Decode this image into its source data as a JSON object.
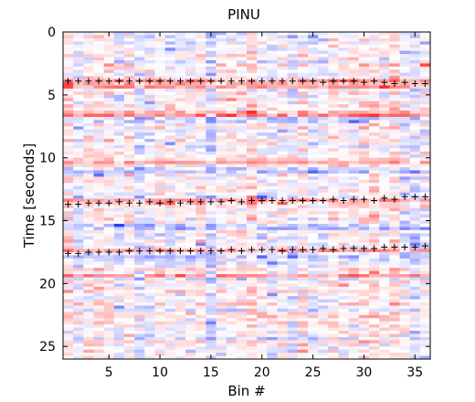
{
  "chart_data": {
    "type": "heatmap",
    "title": "PINU",
    "xlabel": "Bin #",
    "ylabel": "Time [seconds]",
    "xlim": [
      0.5,
      36.5
    ],
    "ylim": [
      0,
      26
    ],
    "y_reversed": true,
    "x_ticks": [
      5,
      10,
      15,
      20,
      25,
      30,
      35
    ],
    "y_ticks": [
      0,
      5,
      10,
      15,
      20,
      25
    ],
    "n_bins": 36,
    "n_time_rows": 104,
    "colormap": "blue-white-red (diverging)",
    "colormap_colors": {
      "low": "#2b3cff",
      "mid": "#ffffff",
      "high": "#ff2b2b"
    },
    "pick_marker": "+",
    "pick_color": "#000000",
    "pick_series": [
      {
        "x": [
          1,
          2,
          3,
          4,
          5,
          6,
          7,
          8,
          9,
          10,
          11,
          12,
          13,
          14,
          15,
          16,
          17,
          18,
          19,
          20,
          21,
          22,
          23,
          24,
          25,
          26,
          27,
          28,
          29,
          30,
          31,
          32,
          33,
          34,
          35,
          36
        ],
        "y": [
          3.9,
          3.9,
          3.9,
          3.9,
          3.9,
          3.9,
          3.9,
          3.9,
          3.9,
          3.9,
          3.9,
          3.9,
          3.9,
          3.9,
          3.9,
          3.9,
          3.9,
          3.9,
          3.9,
          3.9,
          3.9,
          3.9,
          3.9,
          3.9,
          3.9,
          4.0,
          3.9,
          3.9,
          3.9,
          4.0,
          3.9,
          4.0,
          4.1,
          4.0,
          4.1,
          4.1
        ]
      },
      {
        "x": [
          1,
          2,
          3,
          4,
          5,
          6,
          7,
          8,
          9,
          10,
          11,
          12,
          13,
          14,
          15,
          16,
          17,
          18,
          19,
          20,
          21,
          22,
          23,
          24,
          25,
          26,
          27,
          28,
          29,
          30,
          31,
          32,
          33,
          34,
          35,
          36
        ],
        "y": [
          13.7,
          13.7,
          13.6,
          13.6,
          13.6,
          13.5,
          13.6,
          13.6,
          13.5,
          13.6,
          13.5,
          13.6,
          13.5,
          13.5,
          13.5,
          13.5,
          13.4,
          13.5,
          13.4,
          13.4,
          13.4,
          13.4,
          13.4,
          13.4,
          13.4,
          13.4,
          13.3,
          13.4,
          13.3,
          13.3,
          13.4,
          13.2,
          13.3,
          13.1,
          13.1,
          13.1
        ]
      },
      {
        "x": [
          1,
          2,
          3,
          4,
          5,
          6,
          7,
          8,
          9,
          10,
          11,
          12,
          13,
          14,
          15,
          16,
          17,
          18,
          19,
          20,
          21,
          22,
          23,
          24,
          25,
          26,
          27,
          28,
          29,
          30,
          31,
          32,
          33,
          34,
          35,
          36
        ],
        "y": [
          17.6,
          17.6,
          17.5,
          17.5,
          17.5,
          17.5,
          17.4,
          17.4,
          17.4,
          17.4,
          17.4,
          17.4,
          17.4,
          17.4,
          17.4,
          17.4,
          17.3,
          17.4,
          17.3,
          17.3,
          17.3,
          17.4,
          17.3,
          17.3,
          17.3,
          17.2,
          17.3,
          17.2,
          17.2,
          17.2,
          17.2,
          17.1,
          17.1,
          17.1,
          17.1,
          17.0
        ]
      }
    ],
    "strong_row_bands": [
      {
        "t": 3.9,
        "sign": 1,
        "strength": 0.9
      },
      {
        "t": 4.25,
        "sign": 1,
        "strength": 0.7
      },
      {
        "t": 6.6,
        "sign": 1,
        "strength": 0.85
      },
      {
        "t": 7.0,
        "sign": -1,
        "strength": 0.5
      },
      {
        "t": 10.2,
        "sign": 1,
        "strength": 0.6
      },
      {
        "t": 11.0,
        "sign": -1,
        "strength": 0.5
      },
      {
        "t": 13.5,
        "sign": 1,
        "strength": 0.7
      },
      {
        "t": 15.6,
        "sign": -1,
        "strength": 0.6
      },
      {
        "t": 17.4,
        "sign": 1,
        "strength": 0.6
      },
      {
        "t": 18.0,
        "sign": -1,
        "strength": 0.5
      },
      {
        "t": 19.4,
        "sign": 1,
        "strength": 0.5
      },
      {
        "t": 22.5,
        "sign": 1,
        "strength": 0.5
      }
    ],
    "random_seed": 7
  }
}
